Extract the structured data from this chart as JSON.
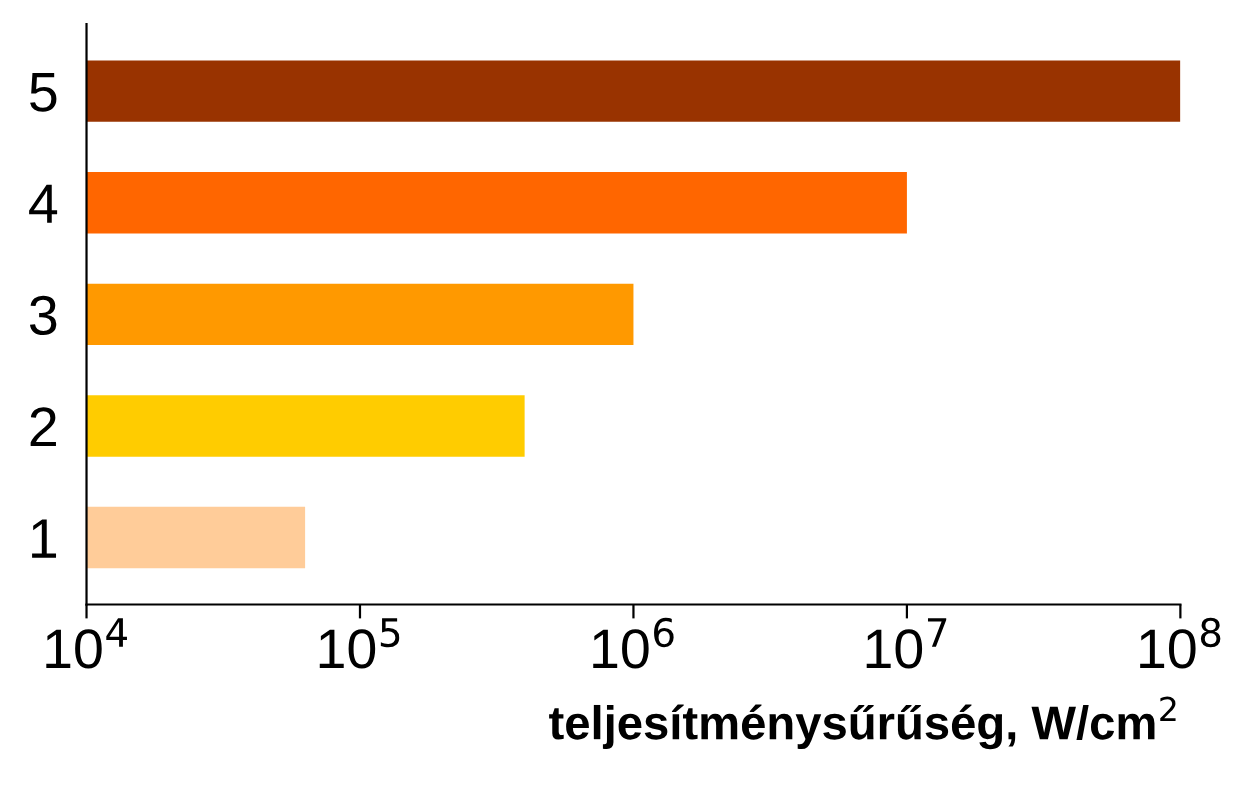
{
  "chart_data": {
    "type": "bar",
    "orientation": "horizontal",
    "log": "x",
    "xlabel": "teljesítménysűrűség, W/cm$^{2}$",
    "categories": [
      "5",
      "4",
      "3",
      "2",
      "1"
    ],
    "values": [
      100000000,
      10000000,
      1000000,
      400000,
      63000
    ],
    "colors": [
      "#993300",
      "#ff6600",
      "#ff9900",
      "#ffcc00",
      "#ffcc99"
    ],
    "xlim": [
      10000,
      100000000
    ],
    "xticks": [
      {
        "value": 10000,
        "label": "10$^{4}$"
      },
      {
        "value": 100000,
        "label": "10$^{5}$"
      },
      {
        "value": 1000000,
        "label": "10$^{6}$"
      },
      {
        "value": 10000000,
        "label": "10$^{7}$"
      },
      {
        "value": 100000000,
        "label": "10$^{8}$"
      }
    ],
    "grid": false,
    "legend": false
  }
}
